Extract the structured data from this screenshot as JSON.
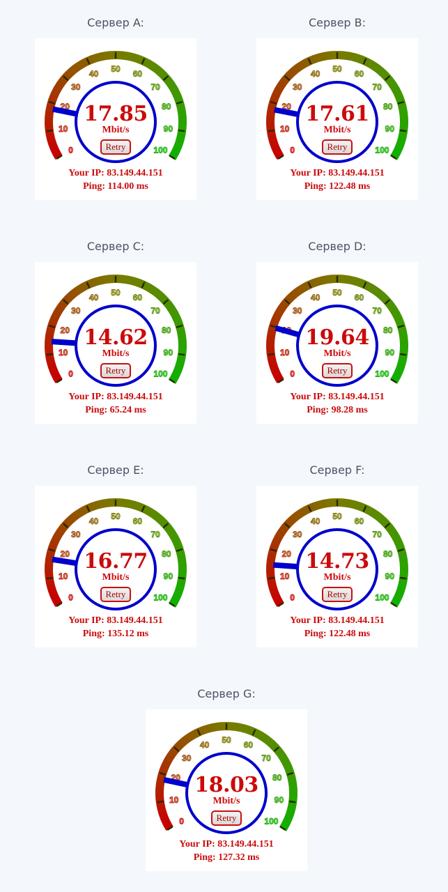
{
  "colors": {
    "background": "#f4f8fc",
    "title": "#4a5268",
    "text_red": "#cc0a0a",
    "needle": "#0000cc",
    "arc_low": "#c80000",
    "arc_mid": "#7a7a00",
    "arc_high": "#10b000"
  },
  "gauge": {
    "scale_min": 0,
    "scale_max": 100,
    "tick_labels": [
      "0",
      "10",
      "20",
      "30",
      "40",
      "50",
      "60",
      "70",
      "80",
      "90",
      "100"
    ]
  },
  "servers": [
    {
      "title": "Сервер A:",
      "speed": "17.85",
      "unit": "Mbit/s",
      "retry_label": "Retry",
      "ip_text": "Your IP: 83.149.44.151",
      "ping_text": "Ping: 114.00 ms",
      "needle_value": 17.85
    },
    {
      "title": "Сервер B:",
      "speed": "17.61",
      "unit": "Mbit/s",
      "retry_label": "Retry",
      "ip_text": "Your IP: 83.149.44.151",
      "ping_text": "Ping: 122.48 ms",
      "needle_value": 17.61
    },
    {
      "title": "Сервер C:",
      "speed": "14.62",
      "unit": "Mbit/s",
      "retry_label": "Retry",
      "ip_text": "Your IP: 83.149.44.151",
      "ping_text": "Ping: 65.24 ms",
      "needle_value": 14.62
    },
    {
      "title": "Сервер D:",
      "speed": "19.64",
      "unit": "Mbit/s",
      "retry_label": "Retry",
      "ip_text": "Your IP: 83.149.44.151",
      "ping_text": "Ping: 98.28 ms",
      "needle_value": 19.64
    },
    {
      "title": "Сервер E:",
      "speed": "16.77",
      "unit": "Mbit/s",
      "retry_label": "Retry",
      "ip_text": "Your IP: 83.149.44.151",
      "ping_text": "Ping: 135.12 ms",
      "needle_value": 16.77
    },
    {
      "title": "Сервер F:",
      "speed": "14.73",
      "unit": "Mbit/s",
      "retry_label": "Retry",
      "ip_text": "Your IP: 83.149.44.151",
      "ping_text": "Ping: 122.48 ms",
      "needle_value": 14.73
    },
    {
      "title": "Сервер G:",
      "speed": "18.03",
      "unit": "Mbit/s",
      "retry_label": "Retry",
      "ip_text": "Your IP: 83.149.44.151",
      "ping_text": "Ping: 127.32 ms",
      "needle_value": 18.03
    }
  ]
}
